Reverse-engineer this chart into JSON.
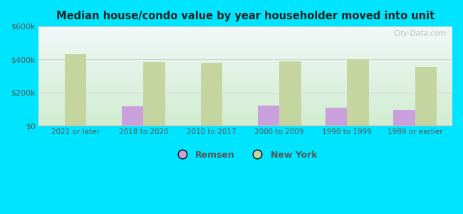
{
  "title": "Median house/condo value by year householder moved into unit",
  "categories": [
    "2021 or later",
    "2018 to 2020",
    "2010 to 2017",
    "2000 to 2009",
    "1990 to 1999",
    "1989 or earlier"
  ],
  "remsen_values": [
    0,
    115000,
    0,
    120000,
    108000,
    95000
  ],
  "ny_values": [
    432000,
    383000,
    378000,
    388000,
    400000,
    353000
  ],
  "remsen_color": "#c9a0dc",
  "ny_color": "#c5d5a0",
  "background_outer": "#00e5ff",
  "background_inner_top": "#f0f8f8",
  "background_inner_bottom": "#d0ecd0",
  "axis_color": "#bbbbbb",
  "text_color": "#555555",
  "title_color": "#222222",
  "ylim": [
    0,
    600000
  ],
  "yticks": [
    0,
    200000,
    400000,
    600000
  ],
  "ytick_labels": [
    "$0",
    "$200k",
    "$400k",
    "$600k"
  ],
  "legend_remsen": "Remsen",
  "legend_ny": "New York",
  "bar_width": 0.32,
  "watermark": "City-Data.com"
}
